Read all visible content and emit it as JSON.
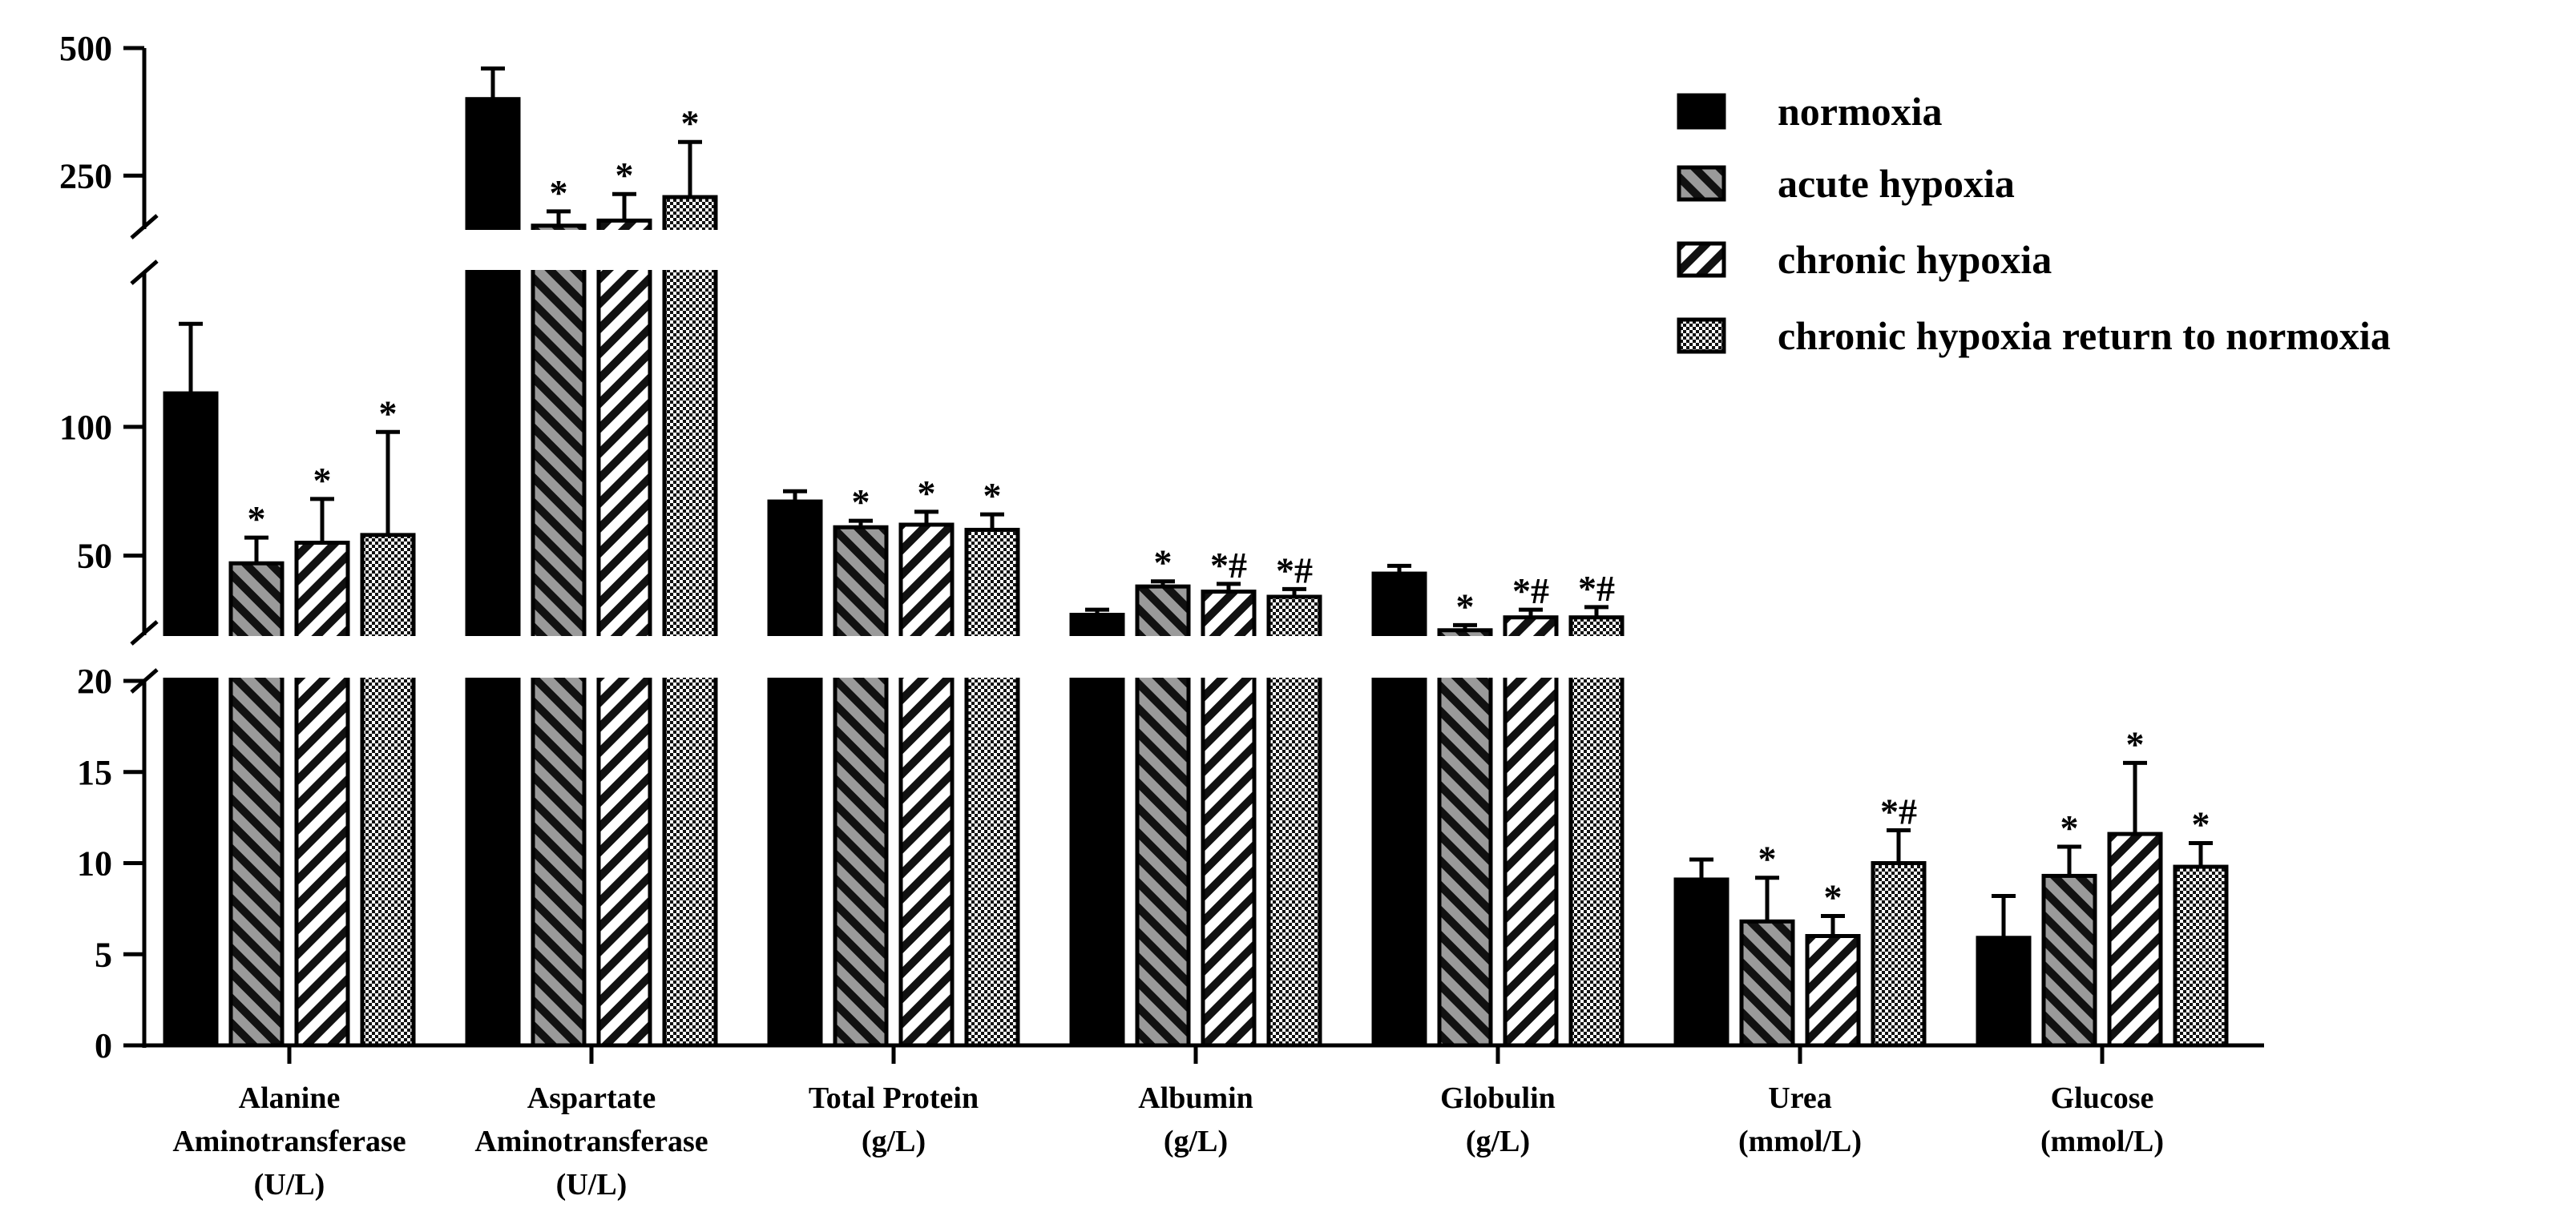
{
  "chart_data": {
    "type": "bar",
    "title": "",
    "xlabel": "",
    "ylabel": "",
    "axis_break": true,
    "y_segments": [
      {
        "range": [
          0,
          20
        ],
        "ticks": [
          "0",
          "5",
          "10",
          "15",
          "20"
        ]
      },
      {
        "range": [
          20,
          160
        ],
        "ticks": [
          "50",
          "100"
        ]
      },
      {
        "range": [
          150,
          500
        ],
        "ticks": [
          "250",
          "500"
        ]
      }
    ],
    "categories": [
      {
        "lines": [
          "Alanine",
          "Aminotransferase",
          "(U/L)"
        ]
      },
      {
        "lines": [
          "Aspartate",
          "Aminotransferase",
          "(U/L)"
        ]
      },
      {
        "lines": [
          "Total Protein",
          "(g/L)"
        ]
      },
      {
        "lines": [
          "Albumin",
          "(g/L)"
        ]
      },
      {
        "lines": [
          "Globulin",
          "(g/L)"
        ]
      },
      {
        "lines": [
          "Urea",
          "(mmol/L)"
        ]
      },
      {
        "lines": [
          "Glucose",
          "(mmol/L)"
        ]
      }
    ],
    "series": [
      {
        "name": "normoxia",
        "pattern": "solid",
        "values": [
          113,
          400,
          71,
          27,
          43,
          9.1,
          5.9
        ],
        "errors": [
          27,
          60,
          4,
          2,
          3,
          1.1,
          2.3
        ],
        "marks": [
          "",
          "",
          "",
          "",
          "",
          "",
          ""
        ]
      },
      {
        "name": "acute hypoxia",
        "pattern": "diagonal-gray",
        "values": [
          47,
          152,
          61,
          38,
          21,
          6.8,
          9.3
        ],
        "errors": [
          10,
          28,
          2.5,
          2,
          2,
          2.4,
          1.6
        ],
        "marks": [
          "*",
          "*",
          "*",
          "*",
          "*",
          "*",
          "*"
        ]
      },
      {
        "name": "chronic hypoxia",
        "pattern": "diagonal-white",
        "values": [
          55,
          162,
          62,
          36,
          26,
          6.0,
          11.6
        ],
        "errors": [
          17,
          52,
          5,
          3,
          3,
          1.1,
          3.9
        ],
        "marks": [
          "*",
          "*",
          "*",
          "*#",
          "*#",
          "*",
          "*"
        ]
      },
      {
        "name": "chronic hypoxia return to normoxia",
        "pattern": "checker",
        "values": [
          58,
          208,
          60,
          34,
          26,
          10.0,
          9.8
        ],
        "errors": [
          40,
          108,
          6,
          3,
          4,
          1.8,
          1.3
        ],
        "marks": [
          "*",
          "*",
          "*",
          "*#",
          "*#",
          "*#",
          "*"
        ]
      }
    ],
    "legend_position": "top-right"
  }
}
